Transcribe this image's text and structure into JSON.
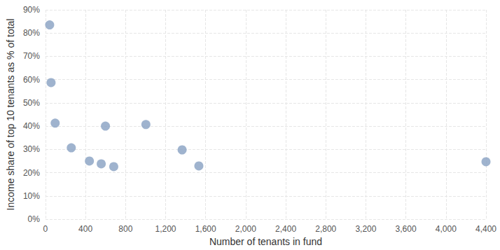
{
  "chart_data": {
    "type": "scatter",
    "x_label": "Number of tenants in fund",
    "y_label": "Income share of top 10 tenants as % of total",
    "x": [
      42,
      56,
      97,
      258,
      439,
      557,
      599,
      682,
      1003,
      1365,
      1532,
      4400
    ],
    "values": [
      83.5,
      58.7,
      41.3,
      30.7,
      25,
      23.8,
      40,
      22.6,
      40.7,
      29.8,
      22.9,
      24.7
    ],
    "color": "#87a0c2",
    "marker": "circle",
    "grid": true,
    "xlim": [
      0,
      4400
    ],
    "xticks": [
      0,
      400,
      800,
      {
        "value": 1200,
        "label": "1,200"
      },
      {
        "value": 1600,
        "label": "1,600"
      },
      {
        "value": 2000,
        "label": "2,000"
      },
      {
        "value": 2400,
        "label": "2,400"
      },
      {
        "value": 2800,
        "label": "2,800"
      },
      {
        "value": 3200,
        "label": "3,200"
      },
      {
        "value": 3600,
        "label": "3,600"
      },
      {
        "value": 4000,
        "label": "4,000"
      },
      {
        "value": 4400,
        "label": "4,400"
      }
    ],
    "ylim": [
      0,
      90
    ],
    "yticks": [
      {
        "value": 0,
        "label": "0%"
      },
      {
        "value": 10,
        "label": "10%"
      },
      {
        "value": 20,
        "label": "20%"
      },
      {
        "value": 30,
        "label": "30%"
      },
      {
        "value": 40,
        "label": "40%"
      },
      {
        "value": 50,
        "label": "50%"
      },
      {
        "value": 60,
        "label": "60%"
      },
      {
        "value": 70,
        "label": "70%"
      },
      {
        "value": 80,
        "label": "80%"
      },
      {
        "value": 90,
        "label": "90%"
      }
    ]
  }
}
